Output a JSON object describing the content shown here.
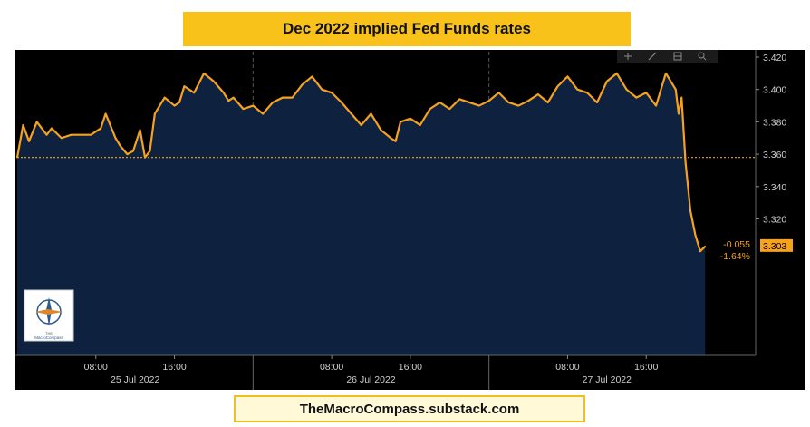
{
  "title": "Dec 2022 implied Fed Funds rates",
  "footer": "TheMacroCompass.substack.com",
  "toolbar_icons": [
    "crosshair-icon",
    "draw-icon",
    "table-icon",
    "zoom-icon"
  ],
  "logo": {
    "name": "the-macro-compass-logo",
    "text": "THE MacroCompass"
  },
  "chart_data": {
    "type": "line",
    "title": "Dec 2022 implied Fed Funds rates",
    "ylim": [
      3.29,
      3.42
    ],
    "y_ticks": [
      "3.420",
      "3.400",
      "3.380",
      "3.360",
      "3.340",
      "3.320"
    ],
    "y_tick_values": [
      3.42,
      3.4,
      3.38,
      3.36,
      3.34,
      3.32
    ],
    "reference_value": 3.358,
    "last_value_label": "3.303",
    "last_value": 3.303,
    "change_abs": "-0.055",
    "change_pct": "-1.64%",
    "x_tick_labels": [
      "08:00",
      "16:00",
      "08:00",
      "16:00",
      "08:00",
      "16:00"
    ],
    "x_tick_positions_hours": [
      8,
      16,
      32,
      40,
      56,
      64
    ],
    "day_labels": [
      "25 Jul 2022",
      "26 Jul 2022",
      "27 Jul 2022"
    ],
    "day_label_centers_hours": [
      12,
      36,
      60
    ],
    "day_boundaries_hours": [
      0,
      24,
      48
    ],
    "x_range_hours": [
      0,
      72
    ],
    "x": [
      0,
      0.6,
      1.2,
      2,
      3,
      3.5,
      4.5,
      5.5,
      6.5,
      7.5,
      8.5,
      9,
      10,
      10.5,
      11.2,
      11.8,
      12.5,
      13,
      13.5,
      14,
      15,
      16,
      16.5,
      17,
      18,
      19,
      20,
      21,
      21.5,
      22,
      23,
      24,
      25,
      26,
      27,
      28,
      29,
      30,
      31,
      32,
      33,
      34,
      35,
      36,
      37,
      38,
      38.5,
      39,
      40,
      41,
      42,
      43,
      44,
      45,
      46,
      47,
      48,
      49,
      50,
      51,
      52,
      53,
      54,
      55,
      56,
      57,
      58,
      59,
      60,
      61,
      62,
      63,
      64,
      65,
      66,
      67,
      67.3,
      67.6,
      68,
      68.5,
      69,
      69.5,
      70
    ],
    "y": [
      3.358,
      3.378,
      3.368,
      3.38,
      3.372,
      3.376,
      3.37,
      3.372,
      3.372,
      3.372,
      3.376,
      3.385,
      3.37,
      3.365,
      3.36,
      3.362,
      3.375,
      3.358,
      3.362,
      3.385,
      3.395,
      3.39,
      3.392,
      3.402,
      3.398,
      3.41,
      3.405,
      3.398,
      3.393,
      3.395,
      3.388,
      3.39,
      3.385,
      3.392,
      3.395,
      3.395,
      3.403,
      3.408,
      3.4,
      3.398,
      3.392,
      3.385,
      3.378,
      3.385,
      3.375,
      3.37,
      3.368,
      3.38,
      3.382,
      3.378,
      3.388,
      3.392,
      3.388,
      3.394,
      3.392,
      3.39,
      3.393,
      3.398,
      3.392,
      3.39,
      3.393,
      3.397,
      3.392,
      3.402,
      3.408,
      3.4,
      3.398,
      3.392,
      3.405,
      3.41,
      3.4,
      3.395,
      3.398,
      3.39,
      3.41,
      3.4,
      3.385,
      3.395,
      3.355,
      3.325,
      3.31,
      3.3,
      3.303
    ]
  }
}
